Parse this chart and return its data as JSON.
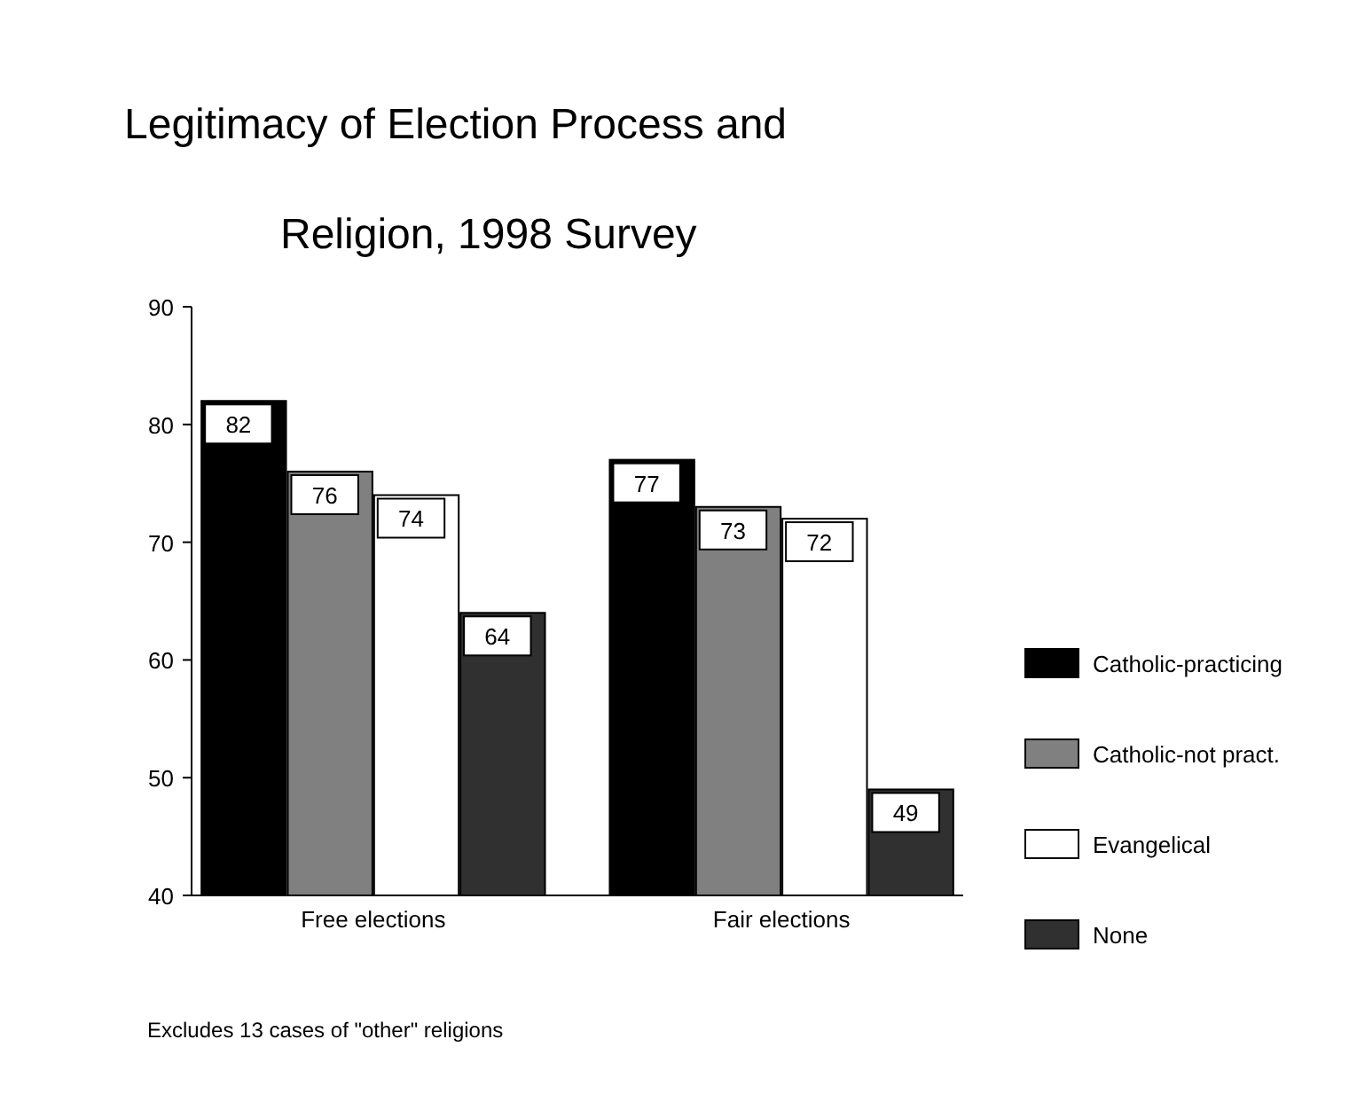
{
  "chart_data": {
    "type": "bar",
    "title": "Legitimacy of Election Process and Religion, 1998 Survey",
    "categories": [
      "Free elections",
      "Fair elections"
    ],
    "series": [
      {
        "name": "Catholic-practicing",
        "color": "#000000",
        "values": [
          82,
          77
        ]
      },
      {
        "name": "Catholic-not pract.",
        "color": "#808080",
        "values": [
          76,
          73
        ]
      },
      {
        "name": "Evangelical",
        "color": "#ffffff",
        "values": [
          74,
          72
        ]
      },
      {
        "name": "None",
        "color": "#303030",
        "values": [
          64,
          49
        ]
      }
    ],
    "ylim": [
      40,
      90
    ],
    "yticks": [
      40,
      50,
      60,
      70,
      80,
      90
    ],
    "data_labels": true,
    "legend": "right",
    "grid": false,
    "annotations": [
      "Excludes 13 cases of \"other\" religions"
    ]
  }
}
